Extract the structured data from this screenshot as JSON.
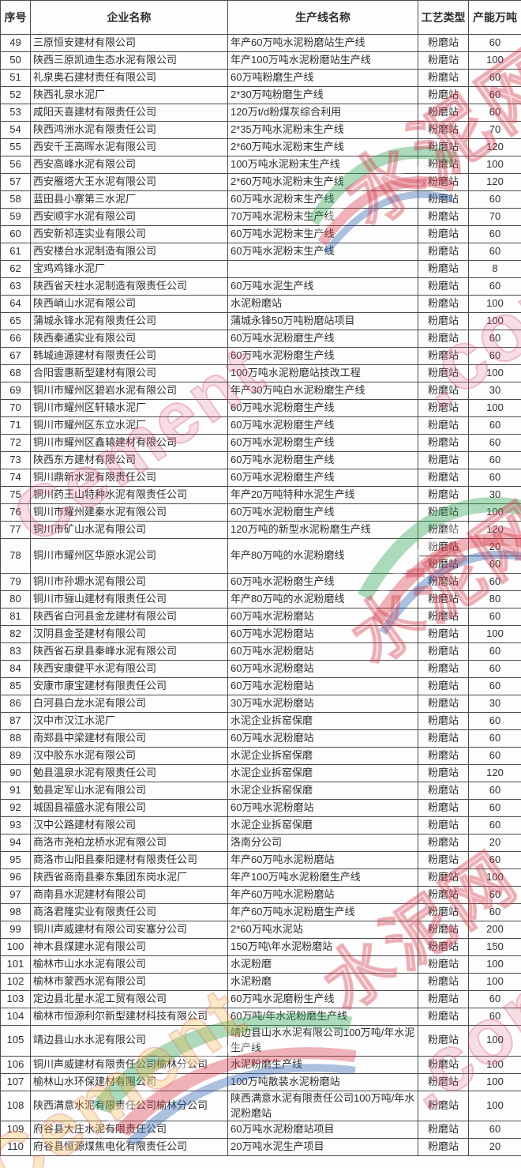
{
  "table": {
    "headers": [
      "序号",
      "企业名称",
      "生产线名称",
      "工艺类型",
      "产能万吨"
    ],
    "rows": [
      {
        "no": "49",
        "company": "三原恒安建材有限公司",
        "line": "年产60万吨水泥粉磨站生产线",
        "type": "粉磨站",
        "capacity": "60"
      },
      {
        "no": "50",
        "company": "陕西三原凯迪生态水泥有限公司",
        "line": "年产100万吨水泥粉磨站生产线",
        "type": "粉磨站",
        "capacity": "100"
      },
      {
        "no": "51",
        "company": "礼泉奥石建材责任有限公司",
        "line": "60万吨粉磨生产线",
        "type": "粉磨站",
        "capacity": "60"
      },
      {
        "no": "52",
        "company": "陕西礼泉水泥厂",
        "line": "2*30万吨粉磨生产线",
        "type": "粉磨站",
        "capacity": "60"
      },
      {
        "no": "53",
        "company": "咸阳天喜建材有限责任公司",
        "line": "120万t/d粉煤灰综合利用",
        "type": "粉磨站",
        "capacity": "60"
      },
      {
        "no": "54",
        "company": "陕西鸿洲水泥有限责任公司",
        "line": "2*35万吨水泥粉末生产线",
        "type": "粉磨站",
        "capacity": "70"
      },
      {
        "no": "55",
        "company": "西安千王高晖水泥有限公司",
        "line": "2*60万吨水泥粉末生产线",
        "type": "粉磨站",
        "capacity": "120"
      },
      {
        "no": "56",
        "company": "西安高峰水泥有限公司",
        "line": "100万吨水泥粉末生产线",
        "type": "粉磨站",
        "capacity": "100"
      },
      {
        "no": "57",
        "company": "西安雁塔大王水泥有限公司",
        "line": "2*60万吨水泥粉末生产线",
        "type": "粉磨站",
        "capacity": "120"
      },
      {
        "no": "58",
        "company": "蓝田县小寨第三水泥厂",
        "line": "60万吨水泥粉末生产线",
        "type": "粉磨站",
        "capacity": "60"
      },
      {
        "no": "59",
        "company": "西安顺宇水泥有限公司",
        "line": "70万吨水泥粉末生产线",
        "type": "粉磨站",
        "capacity": "70"
      },
      {
        "no": "60",
        "company": "西安新祁连实业有限公司",
        "line": "60万吨水泥粉末生产线",
        "type": "粉磨站",
        "capacity": "60"
      },
      {
        "no": "61",
        "company": "西安楼台水泥制造有限公司",
        "line": "60万吨水泥粉末生产线",
        "type": "粉磨站",
        "capacity": "60"
      },
      {
        "no": "62",
        "company": "宝鸡鸡锋水泥厂",
        "line": "",
        "type": "粉磨站",
        "capacity": "8"
      },
      {
        "no": "63",
        "company": "陕西省天柱水泥制造有限责任公司",
        "line": "60万吨水泥生产线",
        "type": "粉磨站",
        "capacity": "60"
      },
      {
        "no": "64",
        "company": "陕西峭山水泥有限公司",
        "line": "水泥粉磨站",
        "type": "粉磨站",
        "capacity": "100"
      },
      {
        "no": "65",
        "company": "蒲城永锋水泥有限责任公司",
        "line": "蒲城永锋50万吨粉磨站项目",
        "type": "粉磨站",
        "capacity": "100"
      },
      {
        "no": "66",
        "company": "陕西秦通实业有限公司",
        "line": "60万吨水泥粉磨生产线",
        "type": "粉磨站",
        "capacity": "60"
      },
      {
        "no": "67",
        "company": "韩城迪源建材有限责任公司",
        "line": "60万吨水泥粉磨生产线",
        "type": "粉磨站",
        "capacity": "60"
      },
      {
        "no": "68",
        "company": "合阳雲惠新型建材有限公司",
        "line": "100万吨水泥粉磨站技改工程",
        "type": "粉磨站",
        "capacity": "100"
      },
      {
        "no": "69",
        "company": "铜川市耀州区碧岩水泥有限公司",
        "line": "年产30万吨白水泥粉磨生产线",
        "type": "粉磨站",
        "capacity": "30"
      },
      {
        "no": "70",
        "company": "铜川市耀州区轩辕水泥厂",
        "line": "60万吨水泥粉磨生产线",
        "type": "粉磨站",
        "capacity": "100"
      },
      {
        "no": "71",
        "company": "铜川市耀州区东立水泥厂",
        "line": "60万吨水泥粉磨生产线",
        "type": "粉磨站",
        "capacity": "60"
      },
      {
        "no": "72",
        "company": "铜川市耀州区鑫辕建材有限公司",
        "line": "60万吨水泥粉磨生产线",
        "type": "粉磨站",
        "capacity": "60"
      },
      {
        "no": "73",
        "company": "陕西东方建材有限公司",
        "line": "60万吨水泥粉磨生产线",
        "type": "粉磨站",
        "capacity": "60"
      },
      {
        "no": "74",
        "company": "铜川鼎新水泥有限责任公司",
        "line": "60万吨水泥粉磨生产线",
        "type": "粉磨站",
        "capacity": "60"
      },
      {
        "no": "75",
        "company": "铜川药王山特种水泥有限责任公司",
        "line": "年产20万吨特种水泥生产线",
        "type": "粉磨站",
        "capacity": "30"
      },
      {
        "no": "76",
        "company": "铜川市耀州建秦水泥有限公司",
        "line": "60万吨水泥粉磨生产线",
        "type": "粉磨站",
        "capacity": "100"
      },
      {
        "no": "77",
        "company": "铜川市矿山水泥有限公司",
        "line": "120万吨的新型水泥粉磨生产线",
        "type": "粉磨站",
        "capacity": "120"
      },
      {
        "no": "78",
        "company": "铜川市耀州区华原水泥公司",
        "line": "年产80万吨的水泥粉磨线",
        "sub": [
          {
            "type": "粉磨站",
            "capacity": "20"
          },
          {
            "type": "粉磨站",
            "capacity": "60"
          }
        ]
      },
      {
        "no": "79",
        "company": "铜川市孙塬水泥有限公司",
        "line": "60万吨水泥粉磨生产线",
        "type": "粉磨站",
        "capacity": "60"
      },
      {
        "no": "80",
        "company": "铜川市骊山建材有限责任公司",
        "line": "年产80万吨的水泥粉磨线",
        "type": "粉磨站",
        "capacity": "80"
      },
      {
        "no": "81",
        "company": "陕西省白河县金龙建材有限公司",
        "line": "60万吨水泥粉磨站",
        "type": "粉磨站",
        "capacity": "60"
      },
      {
        "no": "82",
        "company": "汉阴县金圣建材有限公司",
        "line": "60万吨水泥粉磨站",
        "type": "粉磨站",
        "capacity": "100"
      },
      {
        "no": "83",
        "company": "陕西省石泉县秦峰水泥有限公司",
        "line": "60万吨水泥粉磨站",
        "type": "粉磨站",
        "capacity": "60"
      },
      {
        "no": "84",
        "company": "陕西安康健平水泥有限公司",
        "line": "60万吨水泥粉磨站",
        "type": "粉磨站",
        "capacity": "60"
      },
      {
        "no": "85",
        "company": "安康市康宝建材有限责任公司",
        "line": "60万吨水泥粉磨站",
        "type": "粉磨站",
        "capacity": "60"
      },
      {
        "no": "86",
        "company": "白河县白龙水泥有限公司",
        "line": "30万吨水泥粉磨站",
        "type": "粉磨站",
        "capacity": "30"
      },
      {
        "no": "87",
        "company": "汉中市汉江水泥厂",
        "line": "水泥企业拆窑保磨",
        "type": "粉磨站",
        "capacity": "60"
      },
      {
        "no": "88",
        "company": "南郑县中梁建材有限公司",
        "line": "60万吨水泥粉磨站",
        "type": "粉磨站",
        "capacity": "60"
      },
      {
        "no": "89",
        "company": "汉中胶东水泥有限公司",
        "line": "水泥企业拆窑保磨",
        "type": "粉磨站",
        "capacity": "60"
      },
      {
        "no": "90",
        "company": "勉县温泉水泥有限责任公司",
        "line": "水泥企业拆窑保磨",
        "type": "粉磨站",
        "capacity": "120"
      },
      {
        "no": "91",
        "company": "勉县定军山水泥有限公司",
        "line": "水泥企业拆窑保磨",
        "type": "粉磨站",
        "capacity": "60"
      },
      {
        "no": "92",
        "company": "城固县福盛水泥有限公司",
        "line": "60万吨水泥粉磨站",
        "type": "粉磨站",
        "capacity": "60"
      },
      {
        "no": "93",
        "company": "汉中公路建材有限公司",
        "line": "水泥企业拆窑保磨",
        "type": "粉磨站",
        "capacity": "60"
      },
      {
        "no": "94",
        "company": "商洛市尧柏龙桥水泥有限公司",
        "line": "洛南分公司",
        "type": "粉磨站",
        "capacity": "20"
      },
      {
        "no": "95",
        "company": "商洛市山阳县秦阳建材有限责任公司",
        "line": "年产60万吨水泥粉磨站",
        "type": "粉磨站",
        "capacity": "60"
      },
      {
        "no": "96",
        "company": "陕西省商南县秦东集团东岗水泥厂",
        "line": "年产100万吨水泥粉磨生产线",
        "type": "粉磨站",
        "capacity": "100"
      },
      {
        "no": "97",
        "company": "商南县水泥建材有限公司",
        "line": "年产60万吨水泥粉磨站",
        "type": "粉磨站",
        "capacity": "60"
      },
      {
        "no": "98",
        "company": "商洛君隆实业有限责任公司",
        "line": "年产60万吨水泥粉磨生产线",
        "type": "粉磨站",
        "capacity": "60"
      },
      {
        "no": "99",
        "company": "铜川声威建材有限公司安塞分公司",
        "line": "2*60万吨水泥站",
        "type": "粉磨站",
        "capacity": "200"
      },
      {
        "no": "100",
        "company": "神木县煤建水泥有限公司",
        "line": "150万吨\\年水泥粉磨站",
        "type": "粉磨站",
        "capacity": "150"
      },
      {
        "no": "101",
        "company": "榆林市山水水泥有限公司",
        "line": "水泥粉磨",
        "type": "粉磨站",
        "capacity": "100"
      },
      {
        "no": "102",
        "company": "榆林市蒙西水泥有限公司",
        "line": "水泥粉磨",
        "type": "粉磨站",
        "capacity": "100"
      },
      {
        "no": "103",
        "company": "定边县北星水泥工贸有限公司",
        "line": "60万吨水泥磨粉生产线",
        "type": "粉磨站",
        "capacity": "60"
      },
      {
        "no": "104",
        "company": "榆林市恒源利尔新型建材科技有限公司",
        "line": "60万吨/年水泥粉磨生产线",
        "type": "粉磨站",
        "capacity": "60"
      },
      {
        "no": "105",
        "company": "靖边县山水水泥有限公司",
        "line": "靖边县山水水泥有限公司100万吨/年水泥生产线",
        "type": "粉磨站",
        "capacity": "100"
      },
      {
        "no": "106",
        "company": "铜川声威建材有限责任公司榆林分公司",
        "line": "水泥粉磨生产线",
        "type": "粉磨站",
        "capacity": "100"
      },
      {
        "no": "107",
        "company": "榆林山水环保建材有限公司",
        "line": "100万吨散装水泥粉磨站",
        "type": "粉磨站",
        "capacity": "100"
      },
      {
        "no": "108",
        "company": "陕西满意水泥有限责任公司榆林分公司",
        "line": "陕西满意水泥有限责任公司100万吨/年水泥粉磨站",
        "type": "粉磨站",
        "capacity": "100"
      },
      {
        "no": "109",
        "company": "府谷县大庄水泥有限责任公司",
        "line": "60万吨水泥粉磨站项目",
        "type": "粉磨站",
        "capacity": "60"
      },
      {
        "no": "110",
        "company": "府谷县恒源煤焦电化有限责任公司",
        "line": "20万吨水泥生产项目",
        "type": "粉磨站",
        "capacity": "20"
      }
    ]
  },
  "watermark": {
    "brand": "Cement",
    "suffix": ".com",
    "cn": "水泥网"
  },
  "colors": {
    "border": "#4c4c4c",
    "text": "#2e2e2e",
    "watermark_pink": "#d53e60",
    "watermark_red": "#cd283c",
    "swoosh_green": "#2ea44f",
    "swoosh_red": "#d63a4a",
    "swoosh_blue": "#2b5fb0"
  }
}
